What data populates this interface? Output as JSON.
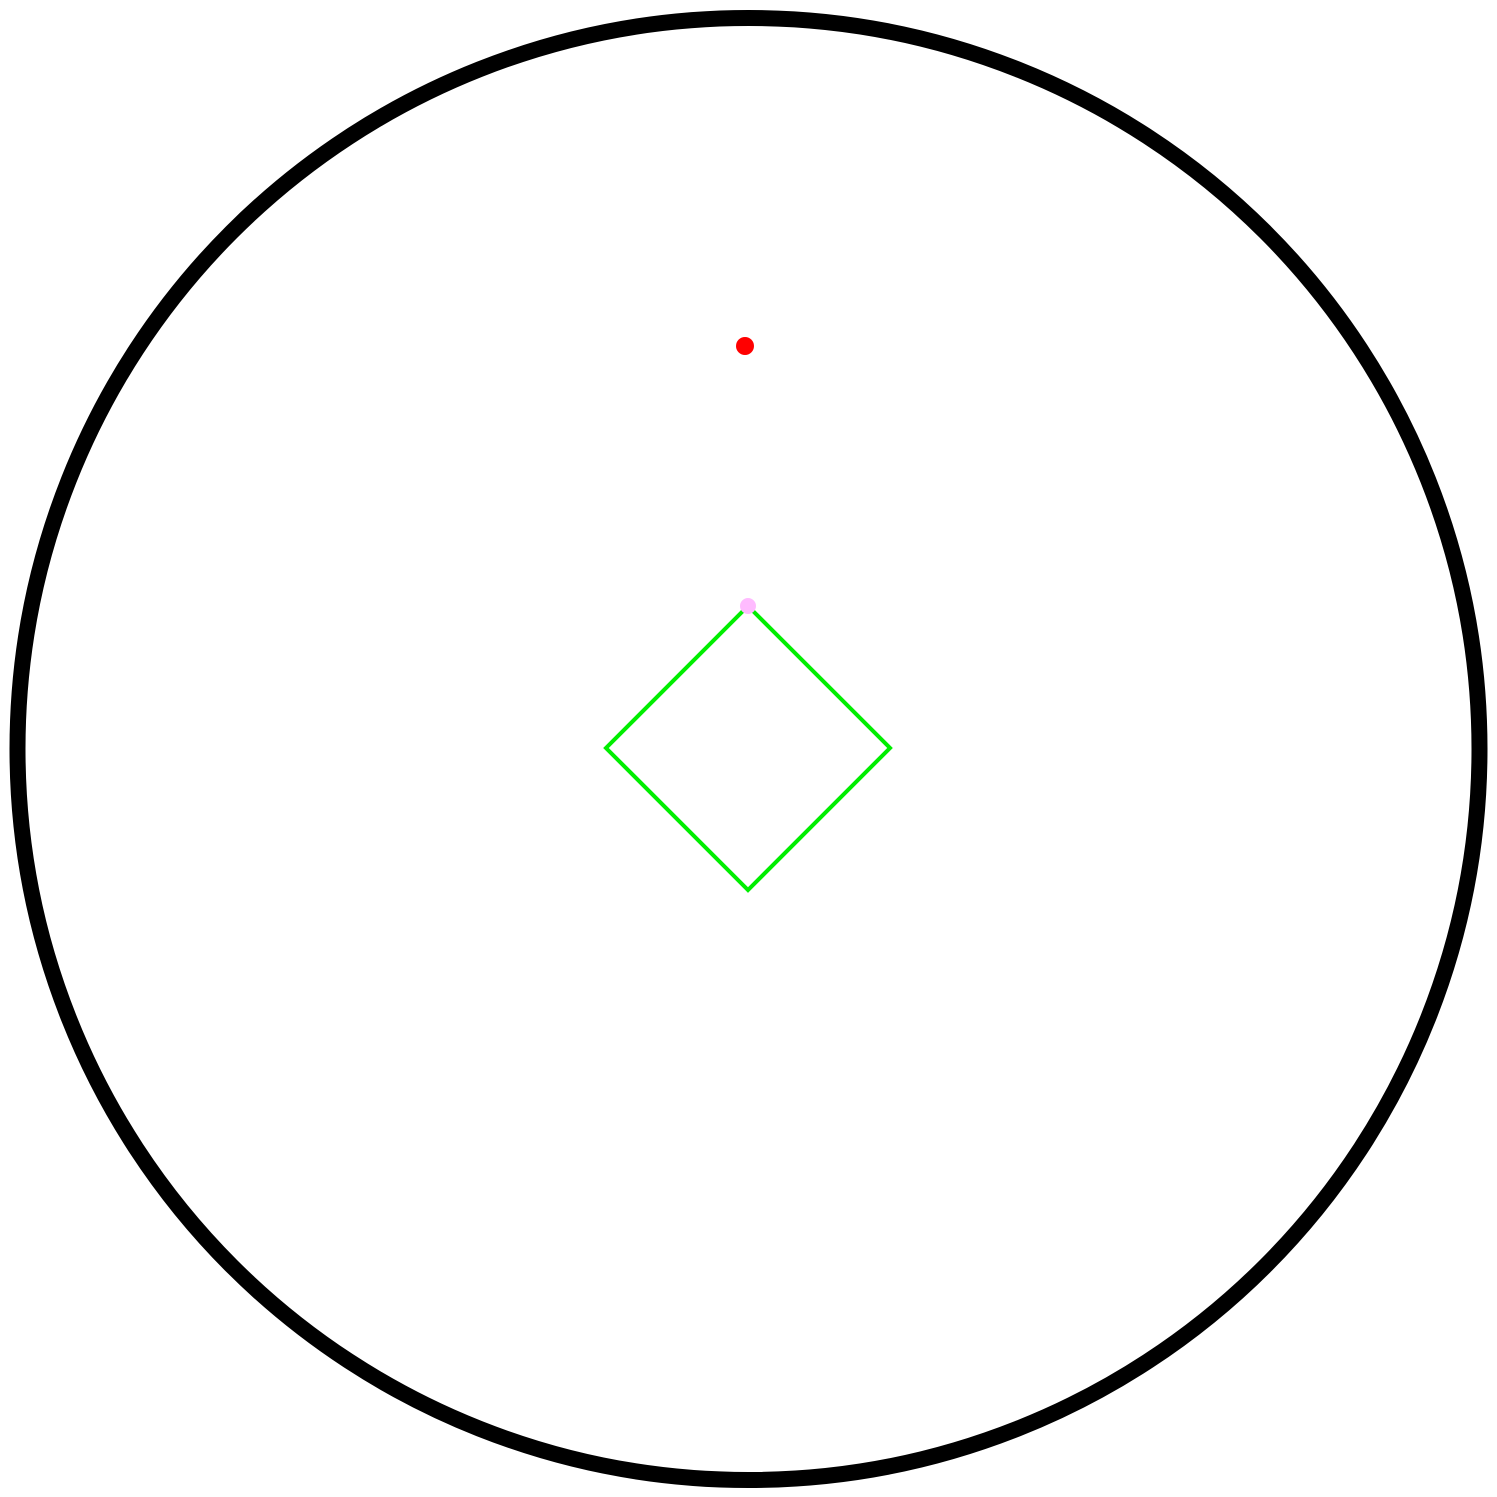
{
  "scene": {
    "background_color": "#ffffff",
    "arena": {
      "shape": "circle",
      "color": "#000000"
    },
    "player": {
      "shape": "diamond",
      "color": "#00ee00"
    },
    "target_dot": {
      "shape": "dot",
      "color": "#ff0000"
    },
    "marker_dot": {
      "shape": "dot",
      "color": "#ffbbff"
    }
  }
}
